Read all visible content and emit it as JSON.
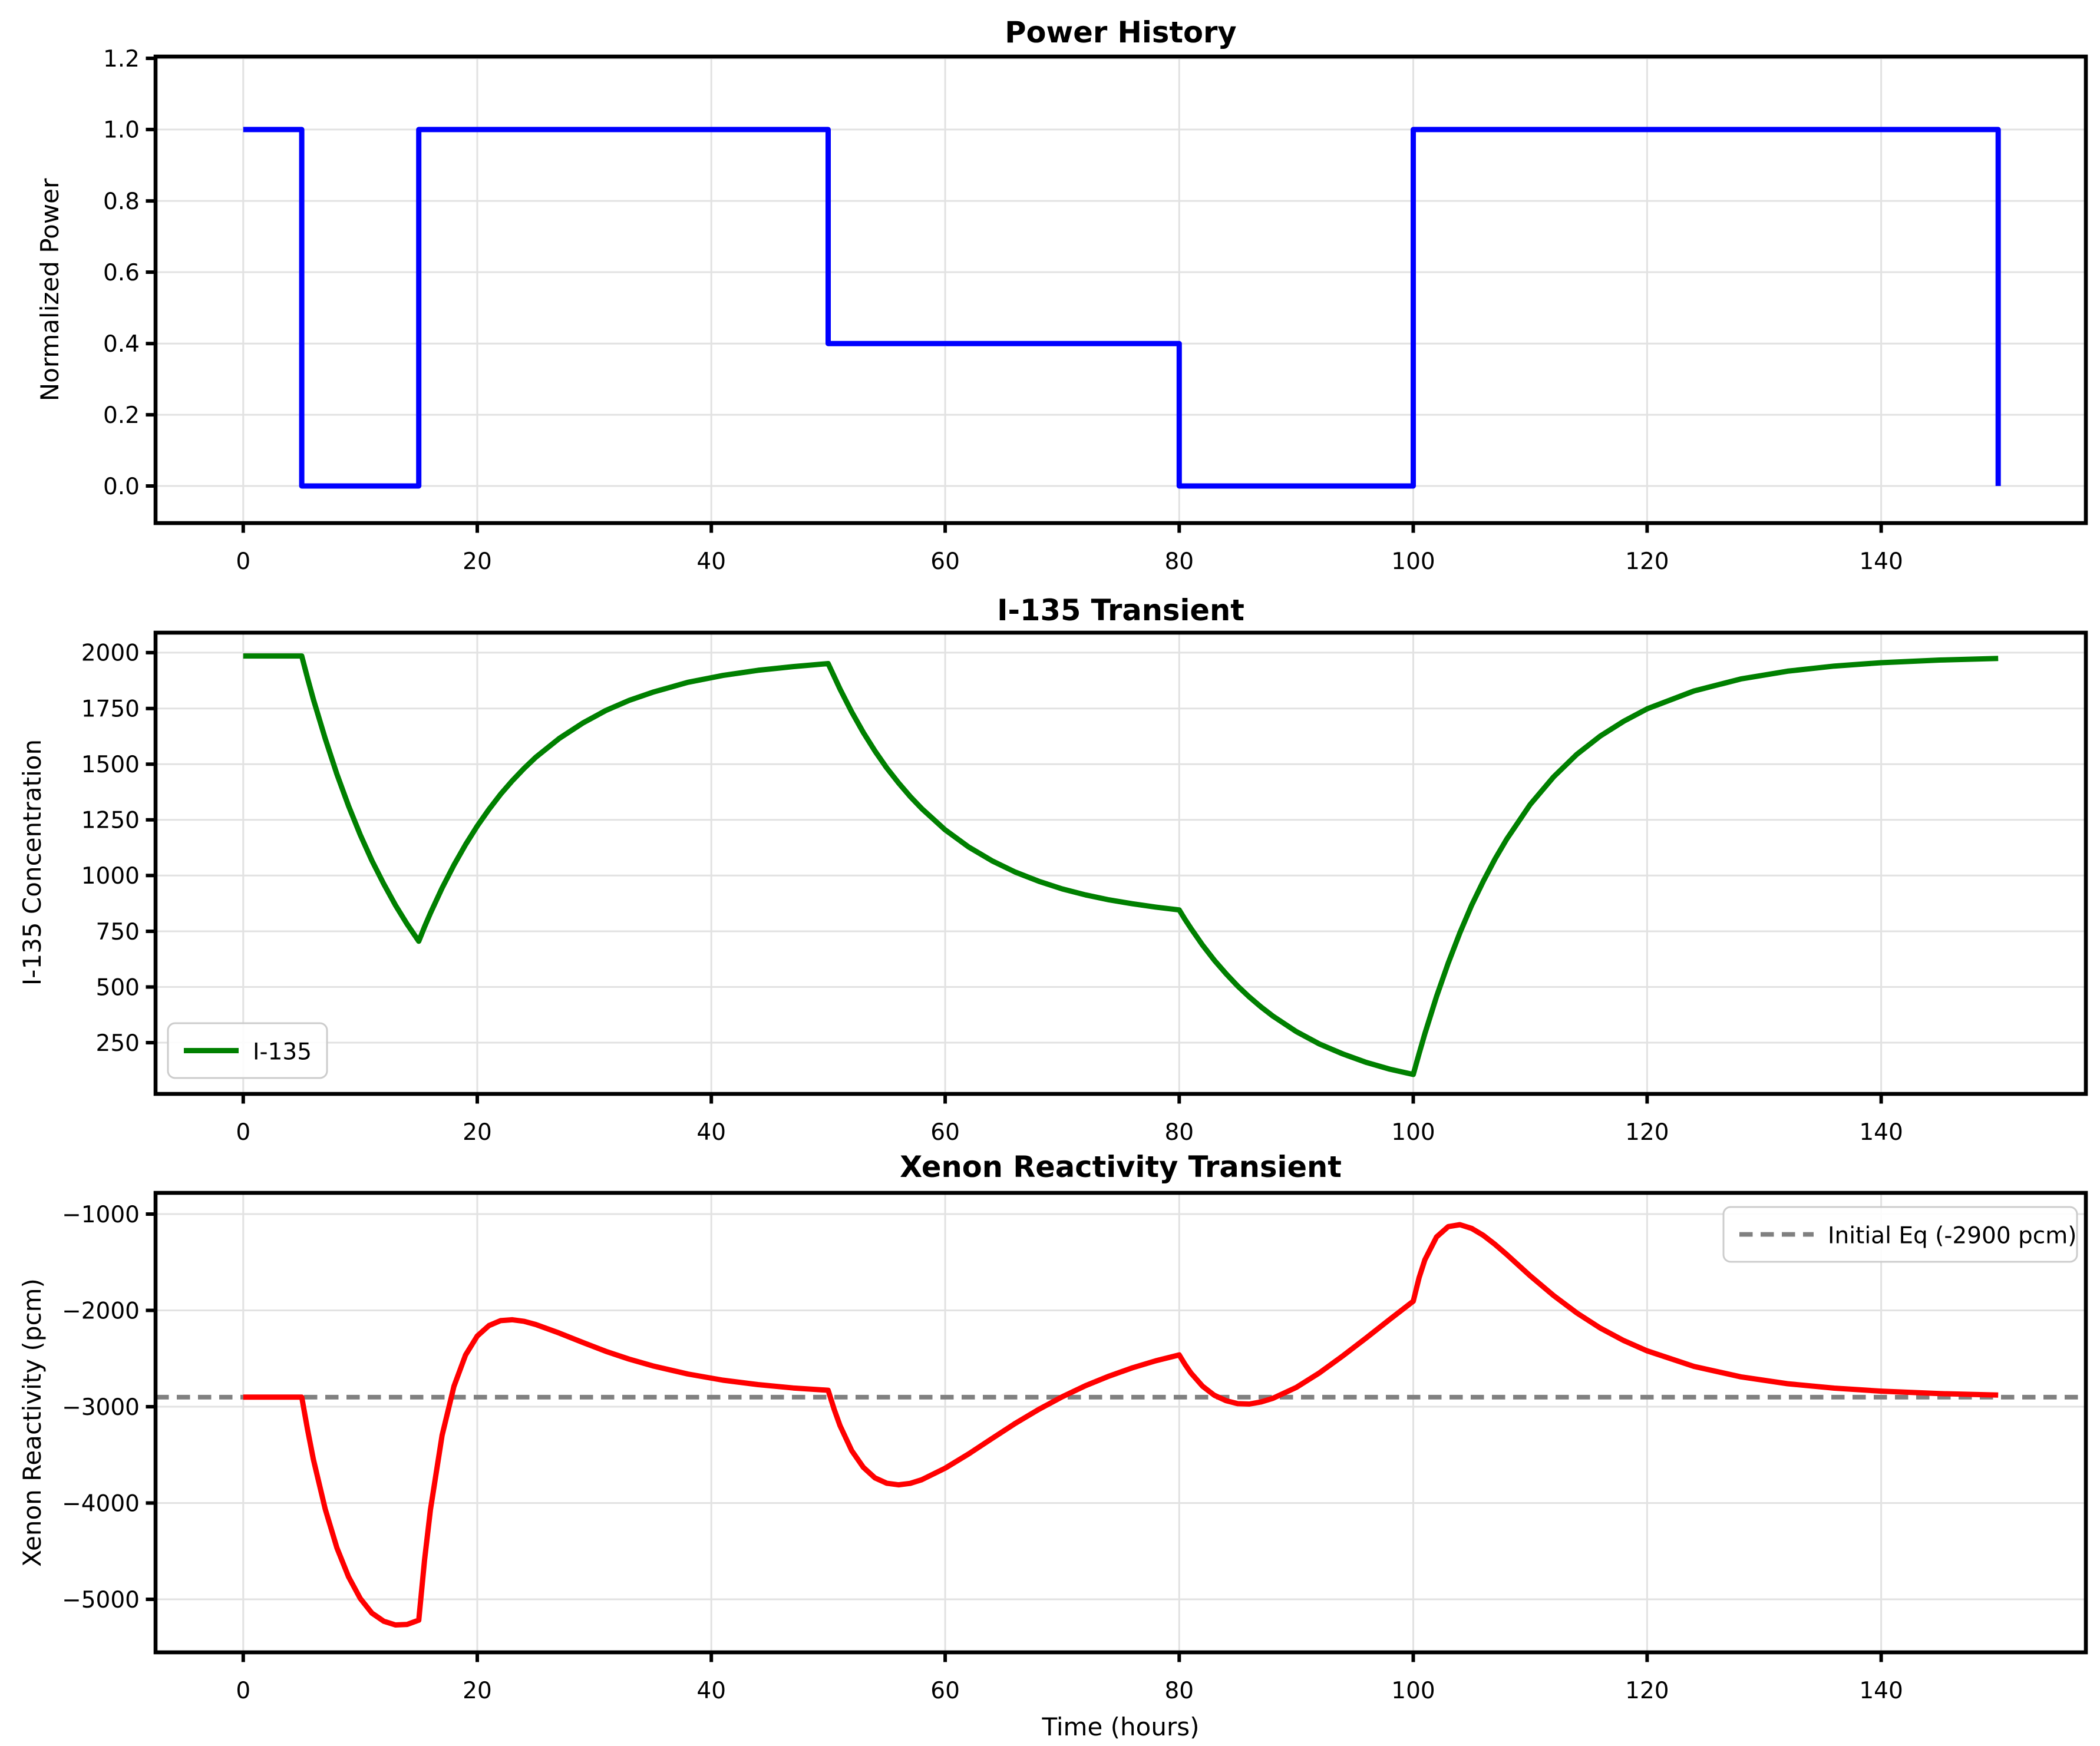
{
  "figure": {
    "background": "#ffffff",
    "colors": {
      "power_line": "#0000ff",
      "iodine_line": "#008000",
      "xenon_line": "#ff0000",
      "equilibrium_line": "#808080",
      "grid": "#e2e2e2",
      "spine": "#000000"
    }
  },
  "chart_data": [
    {
      "type": "line",
      "title": "Power History",
      "ylabel": "Normalized Power",
      "xlabel": "",
      "grid": true,
      "legend_position": "none",
      "xlim": [
        -7.5,
        157.5
      ],
      "ylim": [
        -0.104,
        1.205
      ],
      "xticks": [
        0,
        20,
        40,
        60,
        80,
        100,
        120,
        140
      ],
      "xtick_labels": [
        "0",
        "20",
        "40",
        "60",
        "80",
        "100",
        "120",
        "140"
      ],
      "yticks": [
        0.0,
        0.2,
        0.4,
        0.6,
        0.8,
        1.0,
        1.2
      ],
      "ytick_labels": [
        "0.0",
        "0.2",
        "0.4",
        "0.6",
        "0.8",
        "1.0",
        "1.2"
      ],
      "series": [
        {
          "name": "power-curve",
          "color": "#0000ff",
          "width": 3,
          "points": [
            [
              0,
              1
            ],
            [
              5,
              1
            ],
            [
              5,
              0
            ],
            [
              15,
              0
            ],
            [
              15,
              1
            ],
            [
              50,
              1
            ],
            [
              50,
              0.4
            ],
            [
              80,
              0.4
            ],
            [
              80,
              0
            ],
            [
              100,
              0
            ],
            [
              100,
              1
            ],
            [
              150,
              1
            ],
            [
              150,
              0
            ]
          ]
        }
      ]
    },
    {
      "type": "line",
      "title": "I-135 Transient",
      "ylabel": "I-135 Concentration",
      "xlabel": "",
      "grid": true,
      "legend": {
        "position": "lower-left",
        "label": "I-135"
      },
      "xlim": [
        -7.5,
        157.5
      ],
      "ylim": [
        20,
        2090
      ],
      "xticks": [
        0,
        20,
        40,
        60,
        80,
        100,
        120,
        140
      ],
      "xtick_labels": [
        "0",
        "20",
        "40",
        "60",
        "80",
        "100",
        "120",
        "140"
      ],
      "yticks": [
        250,
        500,
        750,
        1000,
        1250,
        1500,
        1750,
        2000
      ],
      "ytick_labels": [
        "250",
        "500",
        "750",
        "1000",
        "1250",
        "1500",
        "1750",
        "2000"
      ],
      "series": [
        {
          "name": "iodine-curve",
          "color": "#008000",
          "width": 3,
          "points": [
            [
              0,
              1985
            ],
            [
              5,
              1985
            ],
            [
              5.5,
              1885
            ],
            [
              6,
              1790
            ],
            [
              7,
              1614
            ],
            [
              8,
              1455
            ],
            [
              9,
              1312
            ],
            [
              10,
              1183
            ],
            [
              11,
              1067
            ],
            [
              12,
              962
            ],
            [
              13,
              867
            ],
            [
              14,
              782
            ],
            [
              15,
              705
            ],
            [
              15.5,
              770
            ],
            [
              16,
              831
            ],
            [
              17,
              944
            ],
            [
              18,
              1047
            ],
            [
              19,
              1139
            ],
            [
              20,
              1222
            ],
            [
              21,
              1297
            ],
            [
              22,
              1365
            ],
            [
              23,
              1426
            ],
            [
              24,
              1481
            ],
            [
              25,
              1531
            ],
            [
              27,
              1615
            ],
            [
              29,
              1684
            ],
            [
              31,
              1741
            ],
            [
              33,
              1786
            ],
            [
              35,
              1823
            ],
            [
              38,
              1867
            ],
            [
              41,
              1898
            ],
            [
              44,
              1921
            ],
            [
              47,
              1938
            ],
            [
              50,
              1951
            ],
            [
              50.5,
              1893
            ],
            [
              51,
              1837
            ],
            [
              52,
              1735
            ],
            [
              53,
              1642
            ],
            [
              54,
              1559
            ],
            [
              55,
              1483
            ],
            [
              56,
              1416
            ],
            [
              57,
              1355
            ],
            [
              58,
              1300
            ],
            [
              60,
              1205
            ],
            [
              62,
              1128
            ],
            [
              64,
              1066
            ],
            [
              66,
              1015
            ],
            [
              68,
              974
            ],
            [
              70,
              940
            ],
            [
              72,
              913
            ],
            [
              74,
              891
            ],
            [
              76,
              873
            ],
            [
              78,
              858
            ],
            [
              80,
              846
            ],
            [
              80.5,
              803
            ],
            [
              81,
              763
            ],
            [
              82,
              688
            ],
            [
              83,
              620
            ],
            [
              84,
              559
            ],
            [
              85,
              504
            ],
            [
              86,
              455
            ],
            [
              87,
              410
            ],
            [
              88,
              370
            ],
            [
              90,
              300
            ],
            [
              92,
              244
            ],
            [
              94,
              199
            ],
            [
              96,
              161
            ],
            [
              98,
              131
            ],
            [
              100,
              107
            ],
            [
              100.5,
              201
            ],
            [
              101,
              291
            ],
            [
              102,
              458
            ],
            [
              103,
              608
            ],
            [
              104,
              743
            ],
            [
              105,
              866
            ],
            [
              106,
              976
            ],
            [
              107,
              1075
            ],
            [
              108,
              1164
            ],
            [
              110,
              1318
            ],
            [
              112,
              1443
            ],
            [
              114,
              1544
            ],
            [
              116,
              1626
            ],
            [
              118,
              1693
            ],
            [
              120,
              1748
            ],
            [
              124,
              1828
            ],
            [
              128,
              1882
            ],
            [
              132,
              1917
            ],
            [
              136,
              1940
            ],
            [
              140,
              1955
            ],
            [
              145,
              1967
            ],
            [
              150,
              1974
            ]
          ]
        }
      ]
    },
    {
      "type": "line",
      "title": "Xenon Reactivity Transient",
      "ylabel": "Xenon Reactivity (pcm)",
      "xlabel": "Time (hours)",
      "grid": true,
      "legend": {
        "position": "upper-right",
        "label": "Initial Eq (-2900 pcm)"
      },
      "equilibrium_pcm": -2900,
      "xlim": [
        -7.5,
        157.5
      ],
      "ylim": [
        -5550,
        -780
      ],
      "xticks": [
        0,
        20,
        40,
        60,
        80,
        100,
        120,
        140
      ],
      "xtick_labels": [
        "0",
        "20",
        "40",
        "60",
        "80",
        "100",
        "120",
        "140"
      ],
      "yticks": [
        -5000,
        -4000,
        -3000,
        -2000,
        -1000
      ],
      "ytick_labels": [
        "−5000",
        "−4000",
        "−3000",
        "−2000",
        "−1000"
      ],
      "series": [
        {
          "name": "equilibrium-line",
          "color": "#808080",
          "width": 2.6,
          "dash": "7.5 4.5",
          "points": [
            [
              -7.5,
              -2900
            ],
            [
              157.5,
              -2900
            ]
          ]
        },
        {
          "name": "xenon-curve",
          "color": "#ff0000",
          "width": 3,
          "points": [
            [
              0,
              -2900
            ],
            [
              5,
              -2900
            ],
            [
              5.5,
              -3238
            ],
            [
              6,
              -3548
            ],
            [
              7,
              -4064
            ],
            [
              8,
              -4465
            ],
            [
              9,
              -4767
            ],
            [
              10,
              -4991
            ],
            [
              11,
              -5142
            ],
            [
              12,
              -5228
            ],
            [
              13,
              -5265
            ],
            [
              14,
              -5260
            ],
            [
              15,
              -5216
            ],
            [
              15.5,
              -4587
            ],
            [
              16,
              -4070
            ],
            [
              17,
              -3298
            ],
            [
              18,
              -2789
            ],
            [
              19,
              -2463
            ],
            [
              20,
              -2266
            ],
            [
              21,
              -2157
            ],
            [
              22,
              -2107
            ],
            [
              23,
              -2098
            ],
            [
              24,
              -2113
            ],
            [
              25,
              -2146
            ],
            [
              27,
              -2234
            ],
            [
              29,
              -2333
            ],
            [
              31,
              -2425
            ],
            [
              33,
              -2507
            ],
            [
              35,
              -2577
            ],
            [
              38,
              -2661
            ],
            [
              41,
              -2724
            ],
            [
              44,
              -2770
            ],
            [
              47,
              -2805
            ],
            [
              50,
              -2830
            ],
            [
              50.5,
              -3028
            ],
            [
              51,
              -3196
            ],
            [
              52,
              -3455
            ],
            [
              53,
              -3630
            ],
            [
              54,
              -3739
            ],
            [
              55,
              -3794
            ],
            [
              56,
              -3810
            ],
            [
              57,
              -3797
            ],
            [
              58,
              -3758
            ],
            [
              60,
              -3639
            ],
            [
              62,
              -3490
            ],
            [
              64,
              -3330
            ],
            [
              66,
              -3173
            ],
            [
              68,
              -3028
            ],
            [
              70,
              -2898
            ],
            [
              72,
              -2782
            ],
            [
              74,
              -2682
            ],
            [
              76,
              -2596
            ],
            [
              78,
              -2523
            ],
            [
              80,
              -2462
            ],
            [
              80.5,
              -2561
            ],
            [
              81,
              -2649
            ],
            [
              82,
              -2787
            ],
            [
              83,
              -2881
            ],
            [
              84,
              -2938
            ],
            [
              85,
              -2969
            ],
            [
              86,
              -2972
            ],
            [
              87,
              -2951
            ],
            [
              88,
              -2913
            ],
            [
              90,
              -2800
            ],
            [
              92,
              -2648
            ],
            [
              94,
              -2472
            ],
            [
              96,
              -2284
            ],
            [
              98,
              -2093
            ],
            [
              100,
              -1905
            ],
            [
              100.5,
              -1660
            ],
            [
              101,
              -1474
            ],
            [
              102,
              -1237
            ],
            [
              103,
              -1130
            ],
            [
              104,
              -1110
            ],
            [
              105,
              -1148
            ],
            [
              106,
              -1222
            ],
            [
              107,
              -1316
            ],
            [
              108,
              -1421
            ],
            [
              110,
              -1640
            ],
            [
              112,
              -1845
            ],
            [
              114,
              -2027
            ],
            [
              116,
              -2183
            ],
            [
              118,
              -2313
            ],
            [
              120,
              -2421
            ],
            [
              124,
              -2582
            ],
            [
              128,
              -2689
            ],
            [
              132,
              -2761
            ],
            [
              136,
              -2808
            ],
            [
              140,
              -2839
            ],
            [
              145,
              -2864
            ],
            [
              150,
              -2878
            ]
          ]
        }
      ]
    }
  ]
}
